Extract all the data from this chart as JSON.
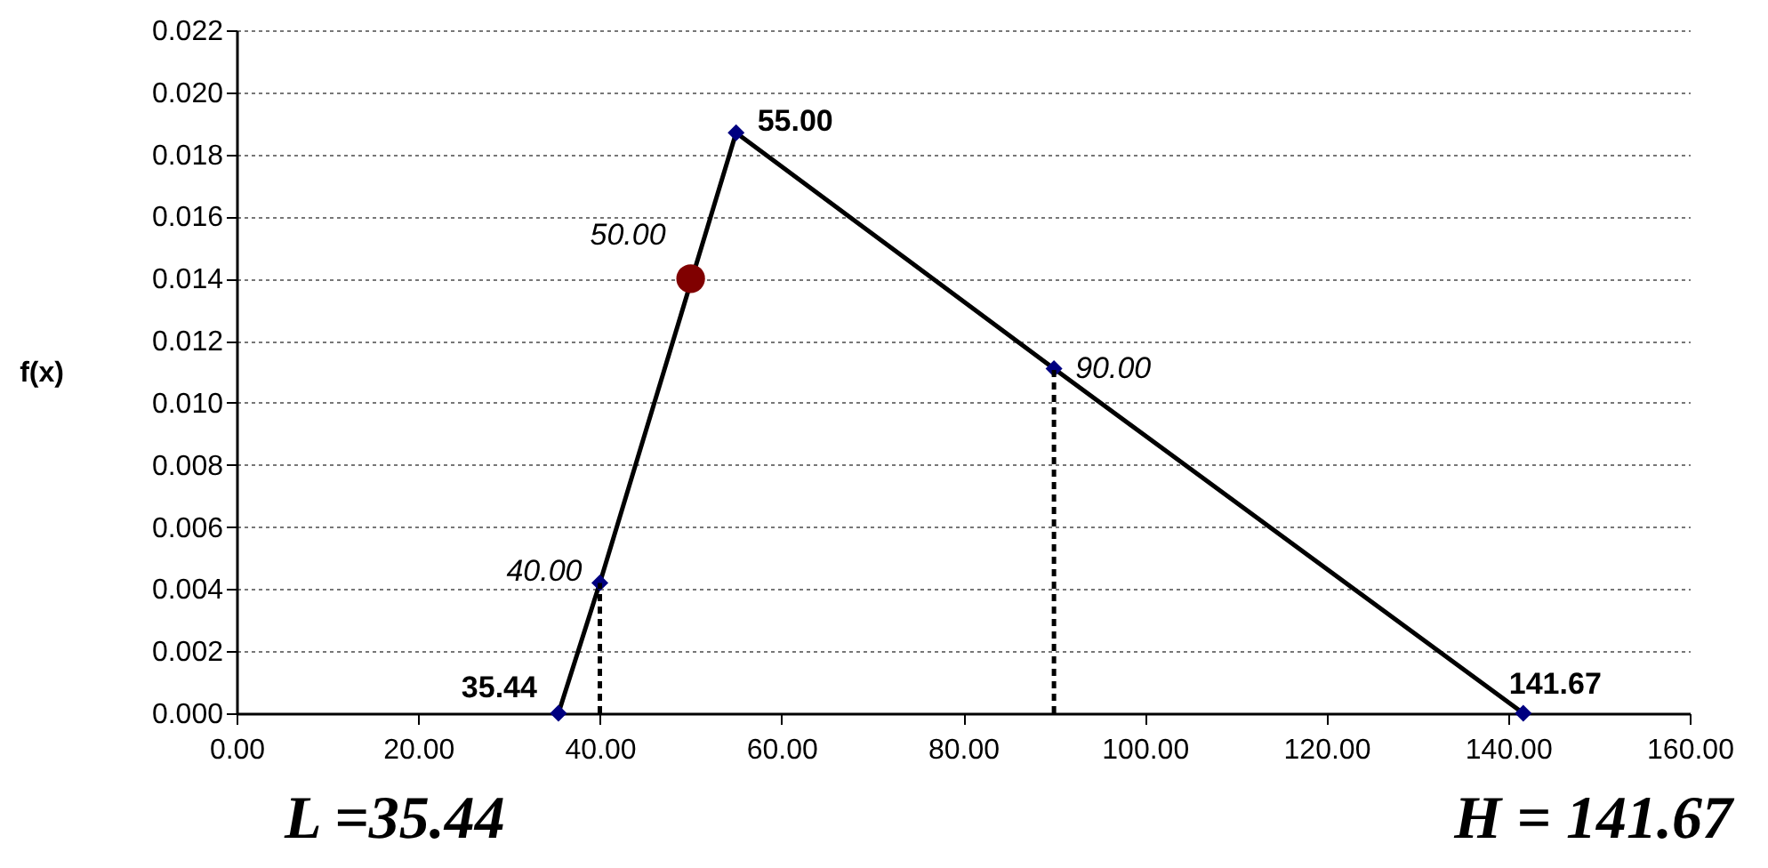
{
  "chart_data": {
    "type": "line",
    "ylabel": "f(x)",
    "xlim": [
      0,
      160
    ],
    "xticks": [
      {
        "value": 0,
        "label": "0.00"
      },
      {
        "value": 20,
        "label": "20.00"
      },
      {
        "value": 40,
        "label": "40.00"
      },
      {
        "value": 60,
        "label": "60.00"
      },
      {
        "value": 80,
        "label": "80.00"
      },
      {
        "value": 100,
        "label": "100.00"
      },
      {
        "value": 120,
        "label": "120.00"
      },
      {
        "value": 140,
        "label": "140.00"
      },
      {
        "value": 160,
        "label": "160.00"
      }
    ],
    "ylim": [
      0,
      0.022
    ],
    "yticks": [
      {
        "value": 0,
        "label": "0.000"
      },
      0.002,
      0.004,
      0.006,
      0.008,
      {
        "value": 0.01,
        "label": "0.010"
      },
      0.012,
      0.014,
      0.016,
      0.018,
      {
        "value": 0.02,
        "label": "0.020"
      },
      0.022
    ],
    "grid": "y",
    "series": [
      {
        "color": "#000000",
        "marker": "none",
        "line_style": "solid",
        "x": [
          35.44,
          40,
          55,
          90,
          141.67
        ],
        "values": [
          0,
          0.0042,
          0.0187,
          0.0111,
          0
        ]
      },
      {
        "type": "scatter",
        "color": "#000080",
        "marker": "diamond",
        "x": [
          35.44,
          40,
          55,
          90,
          141.67
        ],
        "values": [
          0,
          0.0042,
          0.0187,
          0.0111,
          0
        ]
      },
      {
        "type": "scatter",
        "color": "#800000",
        "marker": "circle",
        "x": [
          50
        ],
        "values": [
          0.014
        ]
      },
      {
        "type": "line",
        "color": "#000000",
        "marker": "none",
        "line_style": "dashed",
        "x": [
          40,
          40
        ],
        "values": [
          0,
          0.0042
        ]
      },
      {
        "type": "line",
        "color": "#000000",
        "marker": "none",
        "line_style": "dashed",
        "x": [
          90,
          90
        ],
        "values": [
          0,
          0.0111
        ]
      }
    ],
    "annotations": [
      {
        "text": "35.44",
        "x": 35.44,
        "y": 0
      },
      {
        "text": "40.00",
        "x": 40,
        "y": 0.0042
      },
      {
        "text": "50.00",
        "x": 50,
        "y": 0.014
      },
      {
        "text": "55.00",
        "x": 55,
        "y": 0.0187
      },
      {
        "text": "90.00",
        "x": 90,
        "y": 0.0111
      },
      {
        "text": "141.67",
        "x": 141.67,
        "y": 0
      },
      "L =35.44",
      "H = 141.67"
    ]
  }
}
